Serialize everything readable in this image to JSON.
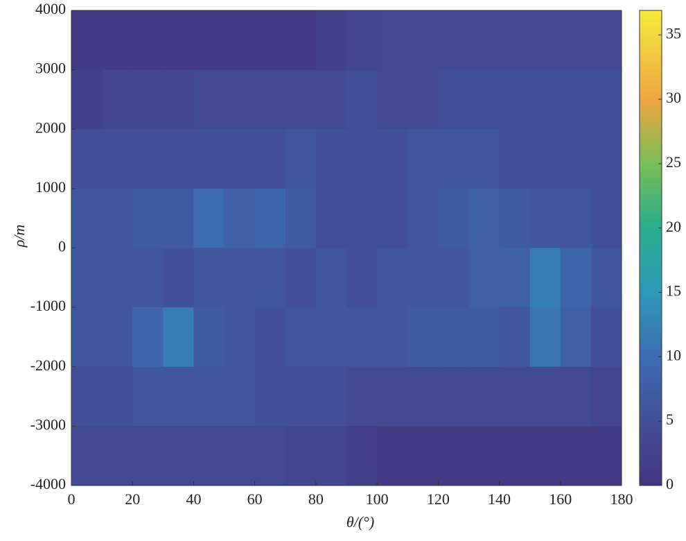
{
  "chart_data": {
    "type": "heatmap",
    "x_label": "θ/(°)",
    "y_label": "ρ/m",
    "x": [
      5,
      15,
      25,
      35,
      45,
      55,
      65,
      75,
      85,
      95,
      105,
      115,
      125,
      135,
      145,
      155,
      165,
      175
    ],
    "y": [
      3500,
      2500,
      1500,
      500,
      -500,
      -1500,
      -2500,
      -3500
    ],
    "z": [
      [
        1,
        1,
        1,
        1,
        1,
        1,
        1,
        1,
        2,
        3,
        4,
        4,
        4,
        4,
        4,
        4,
        4,
        4
      ],
      [
        2,
        3,
        3,
        3,
        4,
        4,
        4,
        4,
        4,
        5,
        4,
        4,
        5,
        5,
        5,
        5,
        5,
        5
      ],
      [
        5,
        5,
        5,
        5,
        5,
        5,
        5,
        6,
        5,
        5,
        5,
        6,
        6,
        6,
        5,
        5,
        5,
        5
      ],
      [
        6,
        6,
        7,
        7,
        10,
        8,
        9,
        7,
        5,
        5,
        5,
        6,
        7,
        8,
        7,
        6,
        6,
        5
      ],
      [
        6,
        6,
        6,
        5,
        6,
        6,
        6,
        5,
        6,
        5,
        6,
        6,
        6,
        8,
        8,
        12,
        9,
        6
      ],
      [
        6,
        6,
        9,
        12,
        7,
        6,
        5,
        6,
        6,
        6,
        6,
        7,
        7,
        7,
        6,
        11,
        8,
        5
      ],
      [
        5,
        5,
        6,
        6,
        6,
        6,
        5,
        5,
        5,
        4,
        4,
        4,
        4,
        4,
        4,
        4,
        4,
        3
      ],
      [
        4,
        4,
        4,
        4,
        4,
        4,
        4,
        3,
        3,
        2,
        1,
        1,
        1,
        1,
        1,
        1,
        1,
        1
      ]
    ],
    "xlim": [
      0,
      180
    ],
    "xticks": [
      0,
      20,
      40,
      60,
      80,
      100,
      120,
      140,
      160,
      180
    ],
    "ylim": [
      -4000,
      4000
    ],
    "yticks": [
      -4000,
      -3000,
      -2000,
      -1000,
      0,
      1000,
      2000,
      3000,
      4000
    ],
    "zlim": [
      0,
      36.9
    ],
    "zticks": [
      0,
      5,
      10,
      15,
      20,
      25,
      30,
      35
    ],
    "colorscale": [
      [
        0,
        "#45347f"
      ],
      [
        0.27,
        "#3d6cb0"
      ],
      [
        0.41,
        "#2c9ab8"
      ],
      [
        0.55,
        "#2cae8a"
      ],
      [
        0.68,
        "#7cbd55"
      ],
      [
        0.81,
        "#eca643"
      ],
      [
        1,
        "#f5eb3b"
      ]
    ]
  }
}
